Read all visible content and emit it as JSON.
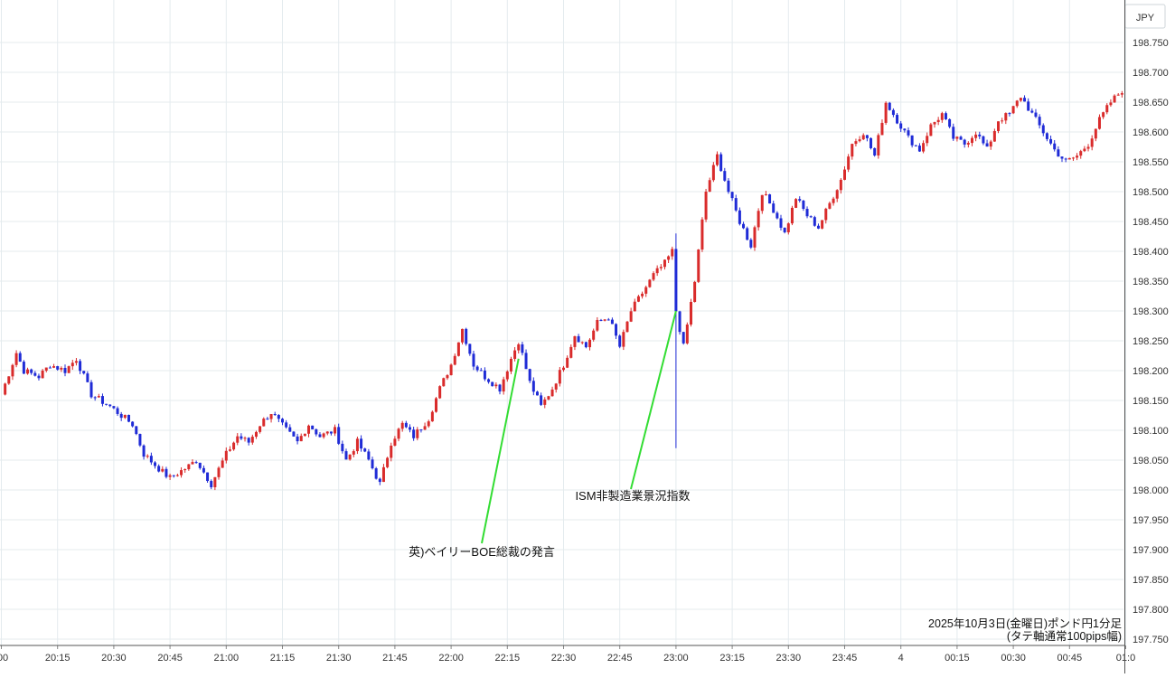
{
  "currency_label": "JPY",
  "footnote": {
    "line1": "2025年10月3日(金曜日)ポンド円1分足",
    "line2": "(タテ軸通常100pips幅)"
  },
  "colors": {
    "up_candle": "#d92b2b",
    "down_candle": "#1f2bd6",
    "annotation_line": "#33dd33",
    "grid": "#e4ebee"
  },
  "chart_data": {
    "type": "candlestick",
    "title": "",
    "x_tick_labels": [
      ":00",
      "20:15",
      "20:30",
      "20:45",
      "21:00",
      "21:15",
      "21:30",
      "21:45",
      "22:00",
      "22:15",
      "22:30",
      "22:45",
      "23:00",
      "23:15",
      "23:30",
      "23:45",
      "4",
      "00:15",
      "00:30",
      "00:45",
      "01:0"
    ],
    "y_tick_labels": [
      "198.750",
      "198.700",
      "198.650",
      "198.600",
      "198.550",
      "198.500",
      "198.450",
      "198.400",
      "198.350",
      "198.300",
      "198.250",
      "198.200",
      "198.150",
      "198.100",
      "198.050",
      "198.000",
      "197.950",
      "197.900",
      "197.850",
      "197.800",
      "197.750"
    ],
    "ylim": [
      197.75,
      198.75
    ],
    "time_range": [
      "20:00",
      "01:02"
    ],
    "interval_minutes": 1,
    "grid": true,
    "close_path": [
      [
        "20:00",
        198.16
      ],
      [
        "20:04",
        198.23
      ],
      [
        "20:06",
        198.2
      ],
      [
        "20:10",
        198.19
      ],
      [
        "20:13",
        198.21
      ],
      [
        "20:17",
        198.2
      ],
      [
        "20:20",
        198.22
      ],
      [
        "20:24",
        198.16
      ],
      [
        "20:29",
        198.14
      ],
      [
        "20:35",
        198.11
      ],
      [
        "20:38",
        198.06
      ],
      [
        "20:43",
        198.03
      ],
      [
        "20:45",
        198.02
      ],
      [
        "20:50",
        198.04
      ],
      [
        "20:52",
        198.05
      ],
      [
        "20:56",
        198.01
      ],
      [
        "21:00",
        198.06
      ],
      [
        "21:03",
        198.09
      ],
      [
        "21:06",
        198.08
      ],
      [
        "21:09",
        198.11
      ],
      [
        "21:12",
        198.13
      ],
      [
        "21:16",
        198.1
      ],
      [
        "21:19",
        198.08
      ],
      [
        "21:22",
        198.11
      ],
      [
        "21:25",
        198.09
      ],
      [
        "21:29",
        198.1
      ],
      [
        "21:32",
        198.05
      ],
      [
        "21:35",
        198.08
      ],
      [
        "21:38",
        198.05
      ],
      [
        "21:41",
        198.01
      ],
      [
        "21:44",
        198.08
      ],
      [
        "21:47",
        198.11
      ],
      [
        "21:50",
        198.09
      ],
      [
        "21:54",
        198.12
      ],
      [
        "21:57",
        198.17
      ],
      [
        "22:00",
        198.21
      ],
      [
        "22:03",
        198.27
      ],
      [
        "22:06",
        198.21
      ],
      [
        "22:09",
        198.19
      ],
      [
        "22:13",
        198.17
      ],
      [
        "22:16",
        198.22
      ],
      [
        "22:18",
        198.25
      ],
      [
        "22:21",
        198.18
      ],
      [
        "22:24",
        198.14
      ],
      [
        "22:27",
        198.17
      ],
      [
        "22:30",
        198.21
      ],
      [
        "22:33",
        198.26
      ],
      [
        "22:36",
        198.24
      ],
      [
        "22:39",
        198.28
      ],
      [
        "22:42",
        198.29
      ],
      [
        "22:45",
        198.24
      ],
      [
        "22:48",
        198.3
      ],
      [
        "22:51",
        198.33
      ],
      [
        "22:54",
        198.36
      ],
      [
        "22:57",
        198.38
      ],
      [
        "22:59",
        198.4
      ],
      [
        "23:00",
        198.3
      ],
      [
        "23:02",
        198.24
      ],
      [
        "23:05",
        198.35
      ],
      [
        "23:08",
        198.5
      ],
      [
        "23:11",
        198.56
      ],
      [
        "23:14",
        198.5
      ],
      [
        "23:17",
        198.45
      ],
      [
        "23:20",
        198.41
      ],
      [
        "23:23",
        198.5
      ],
      [
        "23:26",
        198.47
      ],
      [
        "23:29",
        198.43
      ],
      [
        "23:32",
        198.49
      ],
      [
        "23:35",
        198.46
      ],
      [
        "23:38",
        198.44
      ],
      [
        "23:41",
        198.48
      ],
      [
        "23:44",
        198.52
      ],
      [
        "23:47",
        198.58
      ],
      [
        "23:50",
        198.6
      ],
      [
        "23:53",
        198.56
      ],
      [
        "23:56",
        198.65
      ],
      [
        "23:59",
        198.62
      ],
      [
        "00:02",
        198.59
      ],
      [
        "00:05",
        198.57
      ],
      [
        "00:08",
        198.61
      ],
      [
        "00:11",
        198.63
      ],
      [
        "00:14",
        198.59
      ],
      [
        "00:17",
        198.58
      ],
      [
        "00:20",
        198.6
      ],
      [
        "00:23",
        198.57
      ],
      [
        "00:26",
        198.62
      ],
      [
        "00:29",
        198.63
      ],
      [
        "00:32",
        198.66
      ],
      [
        "00:35",
        198.63
      ],
      [
        "00:38",
        198.6
      ],
      [
        "00:41",
        198.57
      ],
      [
        "00:44",
        198.55
      ],
      [
        "00:47",
        198.56
      ],
      [
        "00:50",
        198.58
      ],
      [
        "00:53",
        198.62
      ],
      [
        "00:56",
        198.65
      ],
      [
        "00:59",
        198.67
      ],
      [
        "01:00",
        198.61
      ],
      [
        "01:02",
        198.64
      ]
    ],
    "spikes": [
      {
        "time": "23:00",
        "low": 198.07,
        "high": 198.43
      }
    ],
    "annotations": [
      {
        "label": "英)ベイリーBOE総裁の発言",
        "time": "22:18",
        "price": 198.22
      },
      {
        "label": "ISM非製造業景況指数",
        "time": "23:00",
        "price": 198.3
      }
    ]
  }
}
